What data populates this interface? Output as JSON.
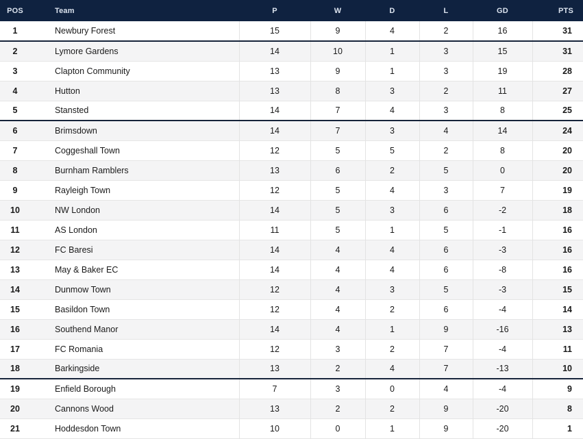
{
  "table": {
    "colors": {
      "header_bg": "#0f2240",
      "header_text": "#dbe3ee",
      "row_alt_bg": "#f4f4f5",
      "divider_dark": "#16233a",
      "row_border": "#e5e5e5",
      "col_separator": "#e3e3e3",
      "text": "#1a1a1a"
    },
    "columns": [
      {
        "key": "pos",
        "label": "POS"
      },
      {
        "key": "team",
        "label": "Team"
      },
      {
        "key": "p",
        "label": "P"
      },
      {
        "key": "w",
        "label": "W"
      },
      {
        "key": "d",
        "label": "D"
      },
      {
        "key": "l",
        "label": "L"
      },
      {
        "key": "gd",
        "label": "GD"
      },
      {
        "key": "pts",
        "label": "PTS"
      }
    ],
    "rows": [
      {
        "pos": 1,
        "team": "Newbury Forest",
        "p": 15,
        "w": 9,
        "d": 4,
        "l": 2,
        "gd": 16,
        "pts": 31,
        "divider_below": true
      },
      {
        "pos": 2,
        "team": "Lymore Gardens",
        "p": 14,
        "w": 10,
        "d": 1,
        "l": 3,
        "gd": 15,
        "pts": 31,
        "divider_below": false
      },
      {
        "pos": 3,
        "team": "Clapton Community",
        "p": 13,
        "w": 9,
        "d": 1,
        "l": 3,
        "gd": 19,
        "pts": 28,
        "divider_below": false
      },
      {
        "pos": 4,
        "team": "Hutton",
        "p": 13,
        "w": 8,
        "d": 3,
        "l": 2,
        "gd": 11,
        "pts": 27,
        "divider_below": false
      },
      {
        "pos": 5,
        "team": "Stansted",
        "p": 14,
        "w": 7,
        "d": 4,
        "l": 3,
        "gd": 8,
        "pts": 25,
        "divider_below": true
      },
      {
        "pos": 6,
        "team": "Brimsdown",
        "p": 14,
        "w": 7,
        "d": 3,
        "l": 4,
        "gd": 14,
        "pts": 24,
        "divider_below": false
      },
      {
        "pos": 7,
        "team": "Coggeshall Town",
        "p": 12,
        "w": 5,
        "d": 5,
        "l": 2,
        "gd": 8,
        "pts": 20,
        "divider_below": false
      },
      {
        "pos": 8,
        "team": "Burnham Ramblers",
        "p": 13,
        "w": 6,
        "d": 2,
        "l": 5,
        "gd": 0,
        "pts": 20,
        "divider_below": false
      },
      {
        "pos": 9,
        "team": "Rayleigh Town",
        "p": 12,
        "w": 5,
        "d": 4,
        "l": 3,
        "gd": 7,
        "pts": 19,
        "divider_below": false
      },
      {
        "pos": 10,
        "team": "NW London",
        "p": 14,
        "w": 5,
        "d": 3,
        "l": 6,
        "gd": -2,
        "pts": 18,
        "divider_below": false
      },
      {
        "pos": 11,
        "team": "AS London",
        "p": 11,
        "w": 5,
        "d": 1,
        "l": 5,
        "gd": -1,
        "pts": 16,
        "divider_below": false
      },
      {
        "pos": 12,
        "team": "FC Baresi",
        "p": 14,
        "w": 4,
        "d": 4,
        "l": 6,
        "gd": -3,
        "pts": 16,
        "divider_below": false
      },
      {
        "pos": 13,
        "team": "May & Baker EC",
        "p": 14,
        "w": 4,
        "d": 4,
        "l": 6,
        "gd": -8,
        "pts": 16,
        "divider_below": false
      },
      {
        "pos": 14,
        "team": "Dunmow Town",
        "p": 12,
        "w": 4,
        "d": 3,
        "l": 5,
        "gd": -3,
        "pts": 15,
        "divider_below": false
      },
      {
        "pos": 15,
        "team": "Basildon Town",
        "p": 12,
        "w": 4,
        "d": 2,
        "l": 6,
        "gd": -4,
        "pts": 14,
        "divider_below": false
      },
      {
        "pos": 16,
        "team": "Southend Manor",
        "p": 14,
        "w": 4,
        "d": 1,
        "l": 9,
        "gd": -16,
        "pts": 13,
        "divider_below": false
      },
      {
        "pos": 17,
        "team": "FC Romania",
        "p": 12,
        "w": 3,
        "d": 2,
        "l": 7,
        "gd": -4,
        "pts": 11,
        "divider_below": false
      },
      {
        "pos": 18,
        "team": "Barkingside",
        "p": 13,
        "w": 2,
        "d": 4,
        "l": 7,
        "gd": -13,
        "pts": 10,
        "divider_below": true
      },
      {
        "pos": 19,
        "team": "Enfield Borough",
        "p": 7,
        "w": 3,
        "d": 0,
        "l": 4,
        "gd": -4,
        "pts": 9,
        "divider_below": false
      },
      {
        "pos": 20,
        "team": "Cannons Wood",
        "p": 13,
        "w": 2,
        "d": 2,
        "l": 9,
        "gd": -20,
        "pts": 8,
        "divider_below": false
      },
      {
        "pos": 21,
        "team": "Hoddesdon Town",
        "p": 10,
        "w": 0,
        "d": 1,
        "l": 9,
        "gd": -20,
        "pts": 1,
        "divider_below": false
      }
    ]
  }
}
